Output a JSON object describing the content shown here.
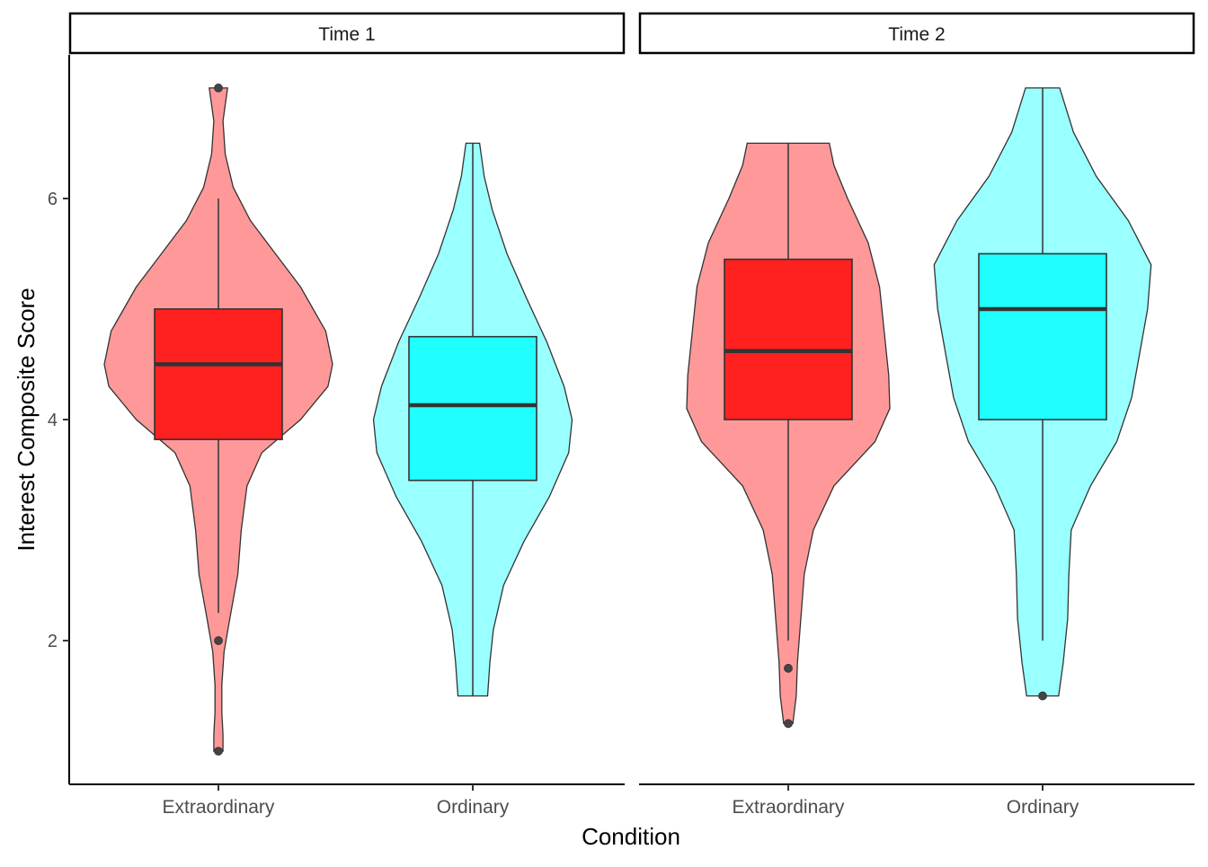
{
  "chart_data": {
    "type": "violin",
    "xlabel": "Condition",
    "ylabel": "Interest Composite Score",
    "yticks": [
      2,
      4,
      6
    ],
    "ylim": [
      0.7,
      7.3
    ],
    "colors": {
      "Extraordinary": {
        "violin": "#ff9999",
        "box": "#ff2020"
      },
      "Ordinary": {
        "violin": "#99ffff",
        "box": "#20ffff"
      }
    },
    "panels": [
      {
        "strip": "Time 1",
        "categories": [
          {
            "name": "Extraordinary",
            "box": {
              "q1": 3.82,
              "median": 4.5,
              "q3": 5.0,
              "whisker_low": 2.25,
              "whisker_high": 6.0
            },
            "outliers": [
              7.0,
              2.0,
              1.0
            ],
            "violin": {
              "ymin": 1.0,
              "ymax": 7.0,
              "profile": [
                [
                  1.0,
                  0.04
                ],
                [
                  1.15,
                  0.04
                ],
                [
                  1.35,
                  0.03
                ],
                [
                  1.6,
                  0.03
                ],
                [
                  1.9,
                  0.05
                ],
                [
                  2.2,
                  0.1
                ],
                [
                  2.6,
                  0.17
                ],
                [
                  3.0,
                  0.2
                ],
                [
                  3.4,
                  0.25
                ],
                [
                  3.7,
                  0.38
                ],
                [
                  4.0,
                  0.72
                ],
                [
                  4.3,
                  0.96
                ],
                [
                  4.5,
                  1.0
                ],
                [
                  4.8,
                  0.94
                ],
                [
                  5.2,
                  0.72
                ],
                [
                  5.5,
                  0.5
                ],
                [
                  5.8,
                  0.28
                ],
                [
                  6.1,
                  0.13
                ],
                [
                  6.4,
                  0.06
                ],
                [
                  6.7,
                  0.04
                ],
                [
                  7.0,
                  0.08
                ]
              ]
            }
          },
          {
            "name": "Ordinary",
            "box": {
              "q1": 3.45,
              "median": 4.13,
              "q3": 4.75,
              "whisker_low": 1.5,
              "whisker_high": 6.5
            },
            "outliers": [],
            "violin": {
              "ymin": 1.5,
              "ymax": 6.5,
              "profile": [
                [
                  1.5,
                  0.13
                ],
                [
                  1.8,
                  0.15
                ],
                [
                  2.1,
                  0.18
                ],
                [
                  2.5,
                  0.27
                ],
                [
                  2.9,
                  0.45
                ],
                [
                  3.3,
                  0.67
                ],
                [
                  3.7,
                  0.84
                ],
                [
                  4.0,
                  0.87
                ],
                [
                  4.3,
                  0.8
                ],
                [
                  4.7,
                  0.65
                ],
                [
                  5.1,
                  0.47
                ],
                [
                  5.5,
                  0.3
                ],
                [
                  5.9,
                  0.17
                ],
                [
                  6.2,
                  0.1
                ],
                [
                  6.5,
                  0.06
                ]
              ]
            }
          }
        ]
      },
      {
        "strip": "Time 2",
        "categories": [
          {
            "name": "Extraordinary",
            "box": {
              "q1": 4.0,
              "median": 4.62,
              "q3": 5.45,
              "whisker_low": 2.0,
              "whisker_high": 6.5
            },
            "outliers": [
              1.75,
              1.25
            ],
            "violin": {
              "ymin": 1.25,
              "ymax": 6.5,
              "profile": [
                [
                  1.25,
                  0.04
                ],
                [
                  1.5,
                  0.07
                ],
                [
                  1.8,
                  0.08
                ],
                [
                  2.2,
                  0.11
                ],
                [
                  2.6,
                  0.14
                ],
                [
                  3.0,
                  0.22
                ],
                [
                  3.4,
                  0.4
                ],
                [
                  3.8,
                  0.76
                ],
                [
                  4.1,
                  0.89
                ],
                [
                  4.4,
                  0.88
                ],
                [
                  4.8,
                  0.84
                ],
                [
                  5.2,
                  0.8
                ],
                [
                  5.6,
                  0.7
                ],
                [
                  6.0,
                  0.52
                ],
                [
                  6.3,
                  0.4
                ],
                [
                  6.5,
                  0.36
                ]
              ]
            }
          },
          {
            "name": "Ordinary",
            "box": {
              "q1": 4.0,
              "median": 5.0,
              "q3": 5.5,
              "whisker_low": 2.0,
              "whisker_high": 7.0
            },
            "outliers": [
              1.5
            ],
            "violin": {
              "ymin": 1.5,
              "ymax": 7.0,
              "profile": [
                [
                  1.5,
                  0.14
                ],
                [
                  1.8,
                  0.18
                ],
                [
                  2.2,
                  0.22
                ],
                [
                  2.6,
                  0.23
                ],
                [
                  3.0,
                  0.25
                ],
                [
                  3.4,
                  0.42
                ],
                [
                  3.8,
                  0.65
                ],
                [
                  4.2,
                  0.78
                ],
                [
                  4.6,
                  0.85
                ],
                [
                  5.0,
                  0.92
                ],
                [
                  5.4,
                  0.95
                ],
                [
                  5.8,
                  0.75
                ],
                [
                  6.2,
                  0.47
                ],
                [
                  6.6,
                  0.27
                ],
                [
                  7.0,
                  0.15
                ]
              ]
            }
          }
        ]
      }
    ]
  }
}
